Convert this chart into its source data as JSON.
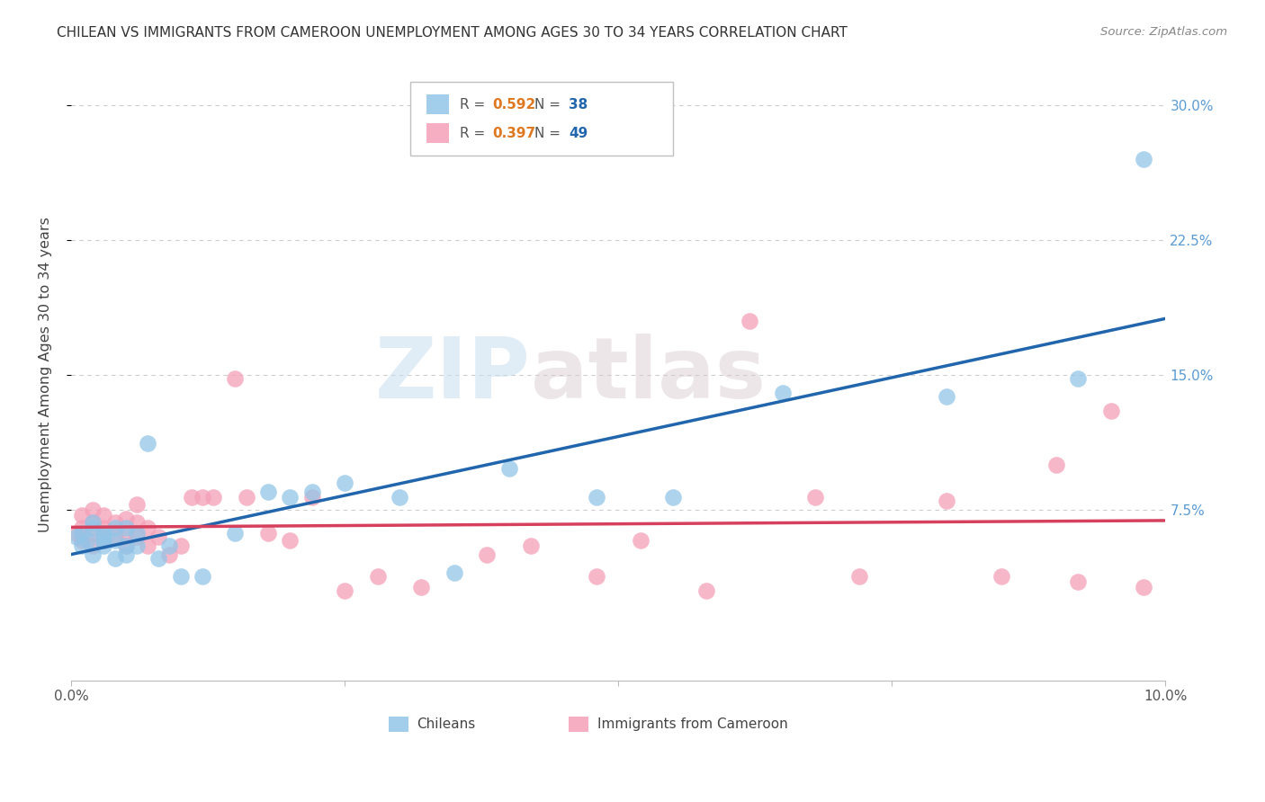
{
  "title": "CHILEAN VS IMMIGRANTS FROM CAMEROON UNEMPLOYMENT AMONG AGES 30 TO 34 YEARS CORRELATION CHART",
  "source": "Source: ZipAtlas.com",
  "ylabel": "Unemployment Among Ages 30 to 34 years",
  "xlim": [
    0.0,
    0.1
  ],
  "ylim": [
    -0.02,
    0.32
  ],
  "ytick_positions": [
    0.075,
    0.15,
    0.225,
    0.3
  ],
  "ytick_labels": [
    "7.5%",
    "15.0%",
    "22.5%",
    "30.0%"
  ],
  "xtick_positions": [
    0.0,
    0.025,
    0.05,
    0.075,
    0.1
  ],
  "xtick_labels": [
    "0.0%",
    "",
    "",
    "",
    "10.0%"
  ],
  "background_color": "#ffffff",
  "grid_color": "#cccccc",
  "chilean_color": "#92c5e8",
  "cameroon_color": "#f4a0b8",
  "chilean_line_color": "#2166ac",
  "cameroon_line_color": "#d6405c",
  "r_chilean": "0.592",
  "n_chilean": "38",
  "r_cameroon": "0.397",
  "n_cameroon": "49",
  "watermark_zip": "ZIP",
  "watermark_atlas": "atlas",
  "label_chilean": "Chileans",
  "label_cameroon": "Immigrants from Cameroon",
  "chilean_x": [
    0.0005,
    0.001,
    0.001,
    0.0015,
    0.002,
    0.002,
    0.002,
    0.003,
    0.003,
    0.003,
    0.003,
    0.004,
    0.004,
    0.004,
    0.005,
    0.005,
    0.005,
    0.006,
    0.006,
    0.007,
    0.008,
    0.009,
    0.01,
    0.012,
    0.015,
    0.018,
    0.02,
    0.022,
    0.025,
    0.03,
    0.035,
    0.04,
    0.048,
    0.055,
    0.065,
    0.08,
    0.092,
    0.098
  ],
  "chilean_y": [
    0.06,
    0.055,
    0.062,
    0.058,
    0.05,
    0.065,
    0.068,
    0.06,
    0.055,
    0.058,
    0.062,
    0.048,
    0.058,
    0.065,
    0.05,
    0.055,
    0.065,
    0.055,
    0.062,
    0.112,
    0.048,
    0.055,
    0.038,
    0.038,
    0.062,
    0.085,
    0.082,
    0.085,
    0.09,
    0.082,
    0.04,
    0.098,
    0.082,
    0.082,
    0.14,
    0.138,
    0.148,
    0.27
  ],
  "cameroon_x": [
    0.0005,
    0.001,
    0.001,
    0.001,
    0.002,
    0.002,
    0.002,
    0.002,
    0.003,
    0.003,
    0.003,
    0.004,
    0.004,
    0.005,
    0.005,
    0.005,
    0.006,
    0.006,
    0.006,
    0.007,
    0.007,
    0.008,
    0.009,
    0.01,
    0.011,
    0.012,
    0.013,
    0.015,
    0.016,
    0.018,
    0.02,
    0.022,
    0.025,
    0.028,
    0.032,
    0.038,
    0.042,
    0.048,
    0.052,
    0.058,
    0.062,
    0.068,
    0.072,
    0.08,
    0.085,
    0.09,
    0.092,
    0.095,
    0.098
  ],
  "cameroon_y": [
    0.062,
    0.058,
    0.065,
    0.072,
    0.055,
    0.062,
    0.068,
    0.075,
    0.058,
    0.065,
    0.072,
    0.06,
    0.068,
    0.055,
    0.062,
    0.07,
    0.06,
    0.068,
    0.078,
    0.055,
    0.065,
    0.06,
    0.05,
    0.055,
    0.082,
    0.082,
    0.082,
    0.148,
    0.082,
    0.062,
    0.058,
    0.082,
    0.03,
    0.038,
    0.032,
    0.05,
    0.055,
    0.038,
    0.058,
    0.03,
    0.18,
    0.082,
    0.038,
    0.08,
    0.038,
    0.1,
    0.035,
    0.13,
    0.032
  ]
}
